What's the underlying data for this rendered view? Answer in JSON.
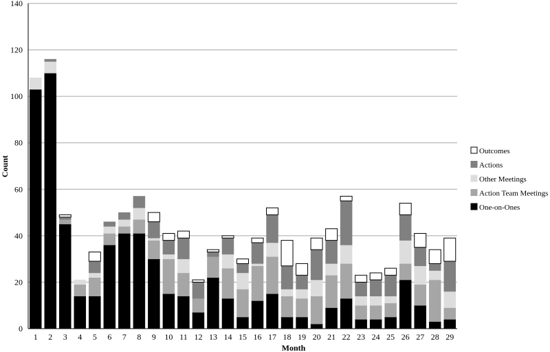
{
  "chart_data": {
    "type": "bar",
    "stacked": true,
    "xlabel": "Month",
    "ylabel": "Count",
    "ylim": [
      0,
      140
    ],
    "yticks": [
      0,
      20,
      40,
      60,
      80,
      100,
      120,
      140
    ],
    "grid": true,
    "legend_position": "right",
    "categories": [
      "1",
      "2",
      "3",
      "4",
      "5",
      "6",
      "7",
      "8",
      "9",
      "10",
      "11",
      "12",
      "13",
      "14",
      "15",
      "16",
      "17",
      "18",
      "19",
      "20",
      "21",
      "22",
      "23",
      "24",
      "25",
      "26",
      "27",
      "28",
      "29"
    ],
    "series": [
      {
        "name": "One-on-Ones",
        "color": "#000000",
        "values": [
          103,
          110,
          45,
          14,
          14,
          36,
          41,
          41,
          30,
          15,
          14,
          7,
          22,
          13,
          5,
          12,
          15,
          5,
          5,
          2,
          9,
          13,
          4,
          4,
          5,
          21,
          10,
          3,
          4
        ]
      },
      {
        "name": "Action Team Meetings",
        "color": "#a6a6a6",
        "values": [
          0,
          0,
          2,
          5,
          8,
          5,
          3,
          6,
          8,
          15,
          10,
          6,
          9,
          13,
          12,
          15,
          16,
          9,
          8,
          12,
          14,
          15,
          6,
          6,
          6,
          7,
          9,
          18,
          5
        ]
      },
      {
        "name": "Other Meetings",
        "color": "#dddddd",
        "values": [
          5,
          5,
          0,
          2,
          2,
          3,
          3,
          5,
          1,
          2,
          6,
          0,
          0,
          6,
          7,
          1,
          6,
          3,
          4,
          7,
          5,
          8,
          4,
          4,
          3,
          10,
          8,
          4,
          7
        ]
      },
      {
        "name": "Actions",
        "color": "#808080",
        "values": [
          0,
          1,
          1,
          0,
          5,
          2,
          3,
          5,
          7,
          6,
          9,
          7,
          2,
          7,
          4,
          9,
          12,
          10,
          6,
          13,
          10,
          19,
          6,
          7,
          9,
          11,
          8,
          3,
          13
        ]
      },
      {
        "name": "Outcomes",
        "color": "#ffffff",
        "values": [
          0,
          0,
          1,
          0,
          4,
          0,
          0,
          0,
          4,
          3,
          3,
          1,
          1,
          1,
          2,
          2,
          3,
          11,
          5,
          5,
          5,
          2,
          3,
          3,
          3,
          5,
          6,
          6,
          10
        ]
      }
    ]
  }
}
